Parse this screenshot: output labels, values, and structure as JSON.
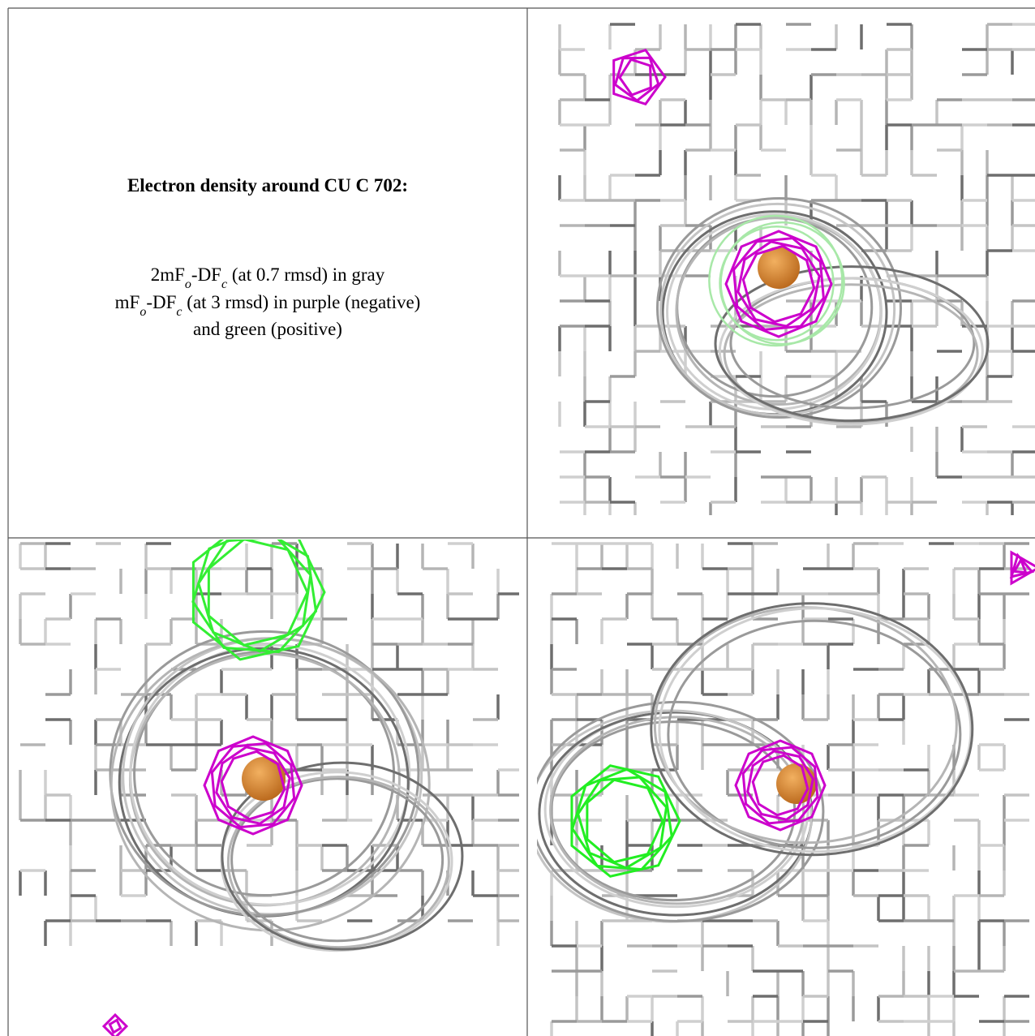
{
  "caption": {
    "title": "Electron density around CU C 702:",
    "lines": [
      [
        {
          "text": "2mF"
        },
        {
          "text": "o",
          "sub": true
        },
        {
          "text": "-DF"
        },
        {
          "text": "c",
          "sub": true
        },
        {
          "text": " (at 0.7 rmsd) in gray"
        }
      ],
      [
        {
          "text": "mF"
        },
        {
          "text": "o",
          "sub": true
        },
        {
          "text": "-DF"
        },
        {
          "text": "c",
          "sub": true
        },
        {
          "text": " (at 3 rmsd) in purple (negative)"
        }
      ],
      [
        {
          "text": "and green (positive)"
        }
      ]
    ]
  }
}
